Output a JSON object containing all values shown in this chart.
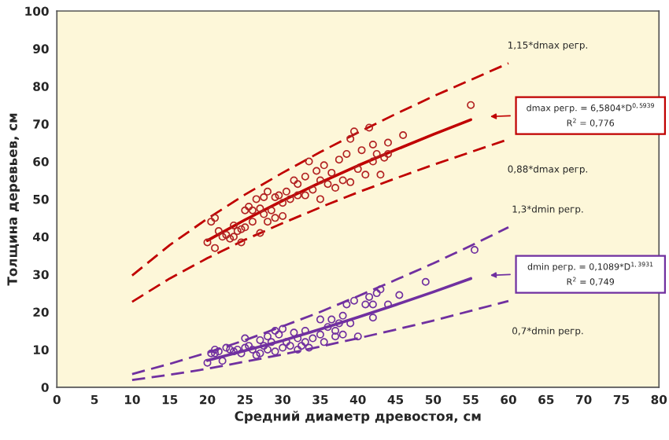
{
  "chart_data": {
    "type": "scatter",
    "xlabel": "Средний диаметр древостоя, см",
    "ylabel": "Толщина деревьев, см",
    "xlim": [
      0,
      80
    ],
    "xticks": [
      0,
      5,
      10,
      15,
      20,
      25,
      30,
      35,
      40,
      45,
      50,
      55,
      60,
      65,
      70,
      75,
      80
    ],
    "ylim": [
      0,
      100
    ],
    "yticks": [
      0,
      10,
      20,
      30,
      40,
      50,
      60,
      70,
      80,
      90,
      100
    ],
    "grid": false,
    "legend": false,
    "series": [
      {
        "color": "#b22222",
        "marker": "circle",
        "x": [
          20,
          20.5,
          21,
          21,
          21.5,
          22,
          22.5,
          23,
          23.5,
          23.5,
          24,
          24.5,
          24.5,
          25,
          25,
          25.5,
          26,
          26,
          26.5,
          27,
          27,
          27.5,
          27.5,
          28,
          28,
          28.5,
          29,
          29,
          29.5,
          30,
          30,
          30.5,
          31,
          31.5,
          32,
          32,
          33,
          33,
          33.5,
          34,
          34.5,
          35,
          35,
          35.5,
          36,
          36.5,
          37,
          37.5,
          38,
          38.5,
          39,
          39,
          39.5,
          40,
          40.5,
          41,
          41.5,
          42,
          42,
          42.5,
          43,
          43.5,
          44,
          44,
          46,
          55
        ],
        "values": [
          38.5,
          44,
          45,
          37,
          41.5,
          40,
          40.5,
          39.5,
          43,
          40,
          41.5,
          42,
          38.5,
          42.5,
          47,
          48,
          47,
          44,
          50,
          41,
          47.5,
          46,
          50.5,
          52,
          44,
          47,
          50.5,
          45,
          51,
          49,
          45.5,
          52,
          50,
          55,
          54,
          51,
          56,
          51,
          60,
          52.5,
          57.5,
          55,
          50,
          59,
          54,
          57,
          53,
          60.5,
          55,
          62,
          66,
          54.5,
          68,
          58,
          63,
          56.5,
          69,
          60,
          64.5,
          62,
          56.5,
          61,
          65,
          62,
          67,
          75
        ]
      },
      {
        "color": "#7030a0",
        "marker": "circle",
        "x": [
          20,
          20.5,
          21,
          21,
          21.5,
          22,
          22.5,
          23,
          23.5,
          24,
          24.5,
          25,
          25,
          25.5,
          26,
          26.5,
          27,
          27,
          27.5,
          28,
          28,
          28.5,
          29,
          29,
          29.5,
          30,
          30,
          30.5,
          31,
          31.5,
          32,
          32,
          32.5,
          33,
          33,
          33.5,
          34,
          35,
          35,
          35.5,
          36,
          36.5,
          37,
          37,
          37.5,
          38,
          38,
          38.5,
          39,
          39.5,
          40,
          41,
          41.5,
          42,
          42,
          42.5,
          43,
          44,
          45.5,
          49,
          55.5
        ],
        "values": [
          6.5,
          9,
          10,
          9,
          9.5,
          7,
          10.5,
          10,
          9.5,
          10,
          9,
          13,
          10.5,
          11,
          10,
          8.5,
          12.5,
          9,
          11,
          13.5,
          10,
          12,
          15,
          9.5,
          14,
          15.5,
          10.5,
          12,
          11,
          14.5,
          10,
          13,
          11,
          15,
          12,
          10.5,
          13,
          18,
          14,
          12,
          16,
          18,
          15,
          13.5,
          17,
          19,
          14,
          22,
          17,
          23,
          13.5,
          22,
          24,
          18.5,
          22,
          25,
          26,
          22,
          24.5,
          28,
          36.5
        ]
      },
      {
        "type": "line",
        "color": "#c00000",
        "line_style": "solid",
        "x": [
          20,
          25,
          30,
          35,
          40,
          45,
          50,
          55
        ],
        "values": [
          39.0,
          44.5,
          49.6,
          54.4,
          58.9,
          63.1,
          67.2,
          71.1
        ]
      },
      {
        "type": "line",
        "color": "#c00000",
        "line_style": "dashed",
        "x": [
          10,
          15,
          20,
          25,
          30,
          35,
          40,
          45,
          50,
          55,
          60
        ],
        "values": [
          29.7,
          37.8,
          44.8,
          51.2,
          57.0,
          62.5,
          67.7,
          72.6,
          77.3,
          81.7,
          86.1
        ]
      },
      {
        "type": "line",
        "color": "#c00000",
        "line_style": "dashed",
        "x": [
          10,
          15,
          20,
          25,
          30,
          35,
          40,
          45,
          50,
          55,
          60
        ],
        "values": [
          22.7,
          28.9,
          34.3,
          39.2,
          43.6,
          47.8,
          51.8,
          55.5,
          59.1,
          62.5,
          65.9
        ]
      },
      {
        "type": "line",
        "color": "#7030a0",
        "line_style": "solid",
        "x": [
          20,
          25,
          30,
          35,
          40,
          45,
          50,
          55
        ],
        "values": [
          7.1,
          9.7,
          12.4,
          15.4,
          18.6,
          21.9,
          25.3,
          28.9
        ]
      },
      {
        "type": "line",
        "color": "#7030a0",
        "line_style": "dashed",
        "x": [
          10,
          15,
          20,
          25,
          30,
          35,
          40,
          45,
          50,
          55,
          60
        ],
        "values": [
          3.5,
          6.2,
          9.2,
          12.5,
          16.2,
          20.0,
          24.2,
          28.5,
          32.9,
          37.6,
          42.5
        ]
      },
      {
        "type": "line",
        "color": "#7030a0",
        "line_style": "dashed",
        "x": [
          10,
          15,
          20,
          25,
          30,
          35,
          40,
          45,
          50,
          55,
          60
        ],
        "values": [
          1.9,
          3.3,
          4.9,
          6.8,
          8.7,
          10.8,
          13.0,
          15.3,
          17.7,
          20.3,
          22.9
        ]
      }
    ],
    "annotations": [
      "1,15*dmax регр.",
      "0,88*dmax регр.",
      "1,3*dmin регр.",
      "0,7*dmin регр.",
      "dmax регр. = 6,5804*D$^{0,5939}$",
      "R$^{2}$ = 0,776",
      "dmin регр. = 0,1089*D$^{1,3931}$",
      "R$^{2}$ = 0,749"
    ]
  }
}
